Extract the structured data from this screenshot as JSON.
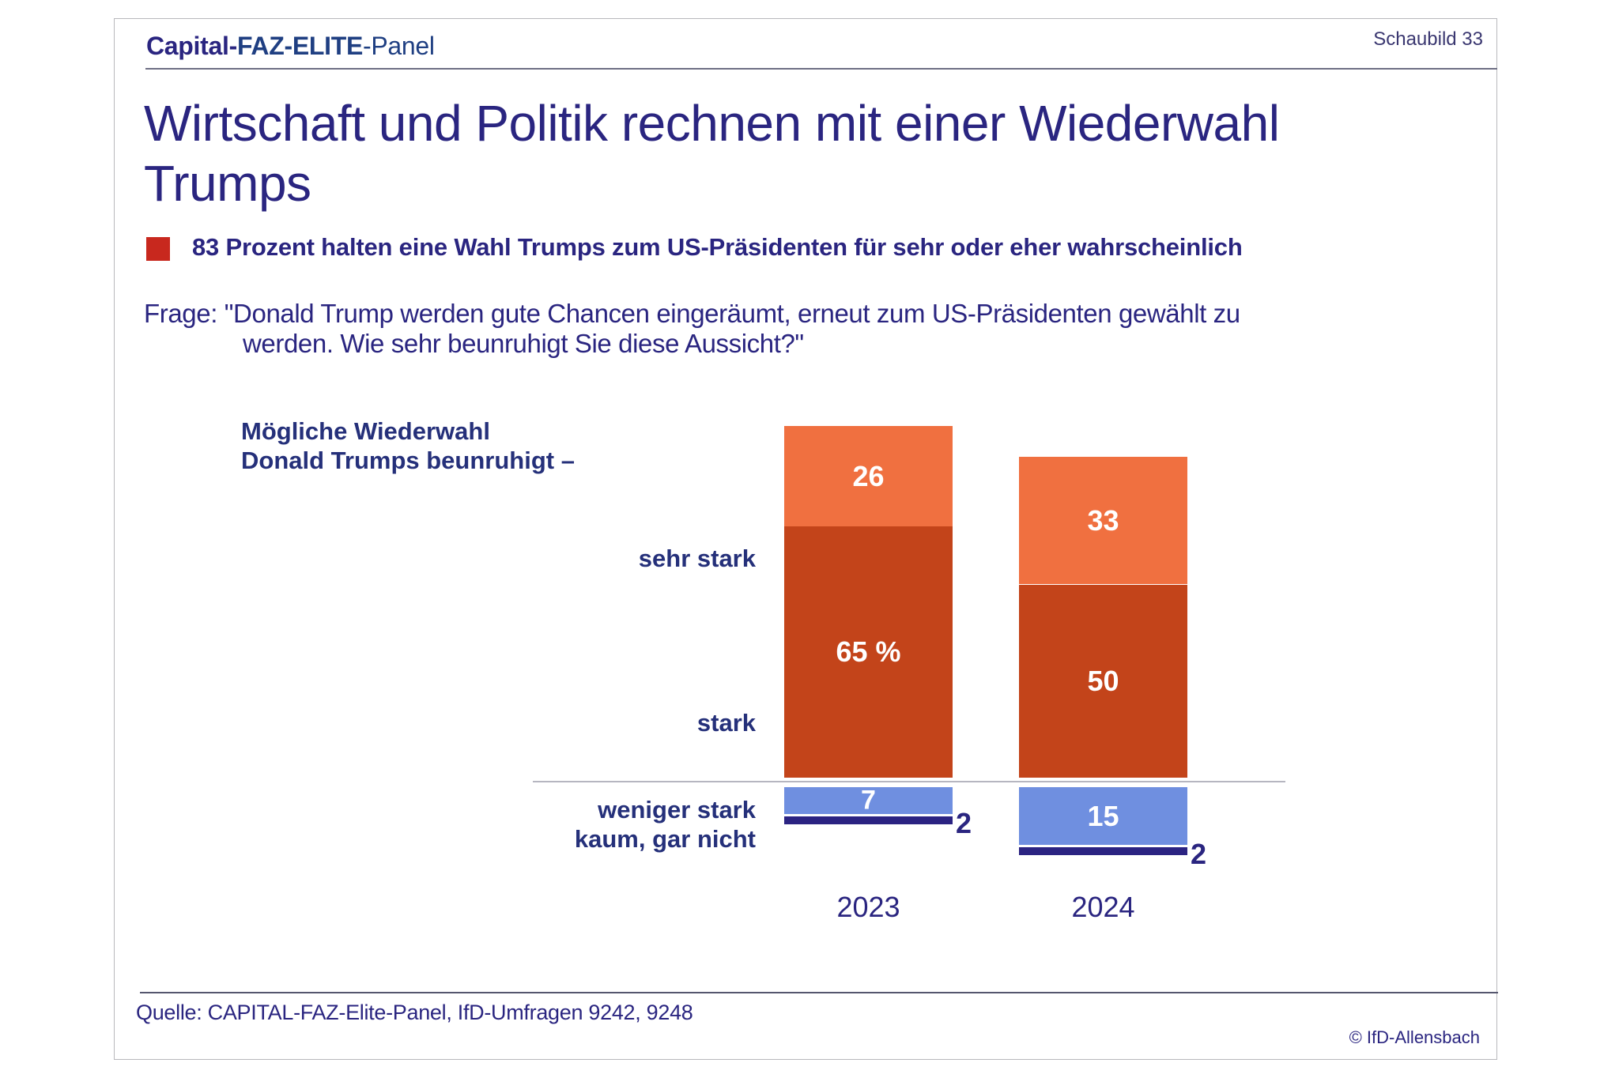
{
  "header": {
    "brand_part1": "Capital-",
    "brand_part2": "FAZ-ELITE",
    "brand_part3": "-Panel",
    "figure_number": "Schaubild 33"
  },
  "title": {
    "line1": "Wirtschaft und Politik rechnen mit einer Wiederwahl",
    "line2": "Trumps"
  },
  "subtitle": {
    "bullet_color": "#c8281e",
    "text": "83 Prozent halten eine Wahl Trumps zum US-Präsidenten für sehr oder eher wahrscheinlich"
  },
  "question": {
    "line1": "Frage: \"Donald Trump werden gute Chancen eingeräumt, erneut zum US-Präsidenten gewählt zu",
    "line2": "werden. Wie sehr beunruhigt Sie diese Aussicht?\""
  },
  "chart_data": {
    "type": "bar",
    "stacked": true,
    "diverging": true,
    "title": "Mögliche Wiederwahl Donald Trumps beunruhigt –",
    "title_lines": [
      "Mögliche Wiederwahl",
      "Donald Trumps beunruhigt –"
    ],
    "categories": [
      "2023",
      "2024"
    ],
    "unit": "%",
    "ylim": [
      -17,
      83
    ],
    "series": [
      {
        "name": "sehr stark",
        "direction": "up",
        "color": "#c3441a",
        "values": [
          65,
          50
        ],
        "labels": [
          "65 %",
          "50"
        ]
      },
      {
        "name": "stark",
        "direction": "up",
        "color": "#f07040",
        "values": [
          26,
          33
        ],
        "labels": [
          "26",
          "33"
        ]
      },
      {
        "name": "weniger stark",
        "direction": "down",
        "color": "#6f8fe0",
        "values": [
          7,
          15
        ],
        "labels": [
          "7",
          "15"
        ]
      },
      {
        "name": "kaum, gar nicht",
        "direction": "down",
        "color": "#2b2382",
        "values": [
          2,
          2
        ],
        "labels": [
          "2",
          "2"
        ]
      }
    ],
    "row_labels": {
      "sehr_stark": "sehr stark",
      "stark": "stark",
      "weniger_stark": "weniger stark",
      "kaum_gar_nicht": "kaum, gar nicht"
    },
    "grid": false,
    "legend": "none"
  },
  "footer": {
    "source": "Quelle: CAPITAL-FAZ-Elite-Panel, IfD-Umfragen 9242, 9248",
    "copyright": "© IfD-Allensbach"
  }
}
